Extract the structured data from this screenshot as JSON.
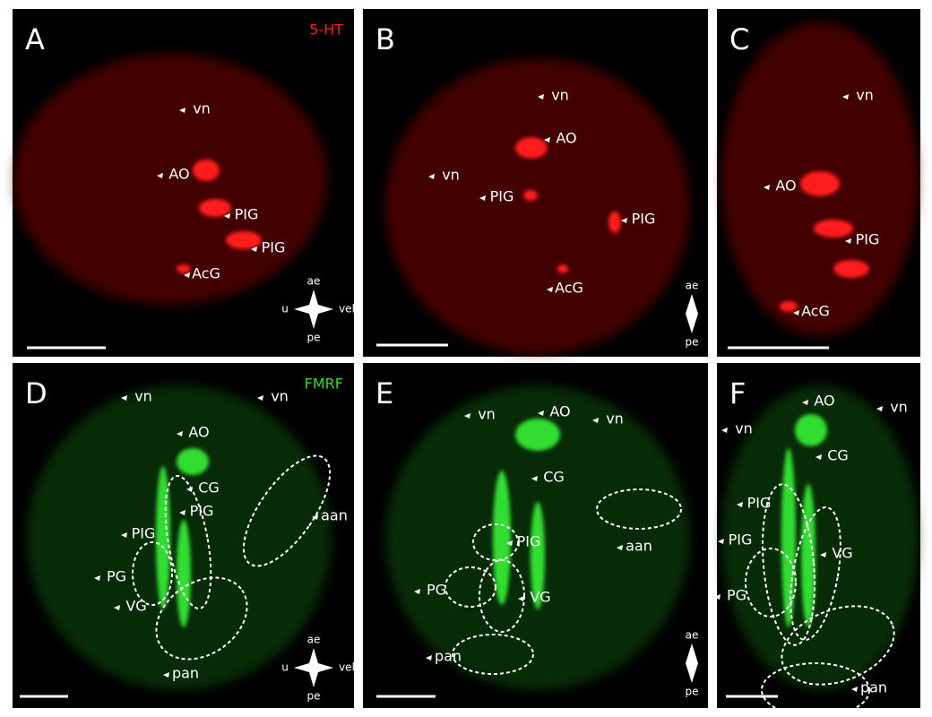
{
  "panels": [
    {
      "letter": "A",
      "stain": "5-HT",
      "labels": [
        "vn",
        "AO",
        "PIG",
        "PIG",
        "AcG"
      ],
      "orientation": [
        "ae",
        "pe",
        "u",
        "vel"
      ]
    },
    {
      "letter": "B",
      "labels": [
        "vn",
        "AO",
        "vn",
        "PIG",
        "PIG",
        "AcG"
      ],
      "orientation": [
        "ae",
        "pe"
      ]
    },
    {
      "letter": "C",
      "labels": [
        "vn",
        "AO",
        "PIG",
        "AcG"
      ]
    },
    {
      "letter": "D",
      "stain": "FMRF",
      "labels": [
        "vn",
        "vn",
        "AO",
        "CG",
        "PIG",
        "PIG",
        "PG",
        "VG",
        "aan",
        "pan"
      ],
      "orientation": [
        "ae",
        "pe",
        "u",
        "vel"
      ]
    },
    {
      "letter": "E",
      "labels": [
        "vn",
        "AO",
        "vn",
        "CG",
        "PIG",
        "PG",
        "VG",
        "aan",
        "pan"
      ],
      "orientation": [
        "ae",
        "pe"
      ]
    },
    {
      "letter": "F",
      "labels": [
        "AO",
        "vn",
        "vn",
        "CG",
        "PIG",
        "PIG",
        "VG",
        "PG",
        "pan"
      ]
    }
  ]
}
